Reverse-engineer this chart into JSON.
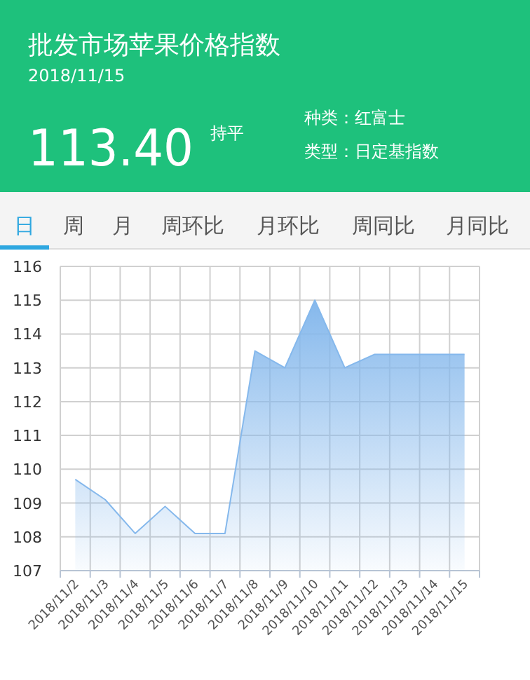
{
  "chart_data": {
    "type": "area",
    "title": "批发市场苹果价格指数",
    "subtitle": "2018/11/15",
    "annotations": [
      "113.40",
      "持平",
      "种类：红富士",
      "类型：日定基指数",
      "日",
      "周",
      "月",
      "周环比",
      "月环比",
      "周同比",
      "月同比"
    ],
    "categories": [
      "2018/11/2",
      "2018/11/3",
      "2018/11/4",
      "2018/11/5",
      "2018/11/6",
      "2018/11/7",
      "2018/11/8",
      "2018/11/9",
      "2018/11/10",
      "2018/11/11",
      "2018/11/12",
      "2018/11/13",
      "2018/11/14",
      "2018/11/15"
    ],
    "series": [
      {
        "color": "#85b8ec",
        "values": [
          109.7,
          109.1,
          108.1,
          108.9,
          108.1,
          108.1,
          113.5,
          113.0,
          115.0,
          113.0,
          113.4,
          113.4,
          113.4,
          113.4
        ]
      }
    ],
    "ylim": [
      107,
      116
    ],
    "yticks": [
      107,
      108,
      109,
      110,
      111,
      112,
      113,
      114,
      115,
      116
    ],
    "grid": true
  }
}
